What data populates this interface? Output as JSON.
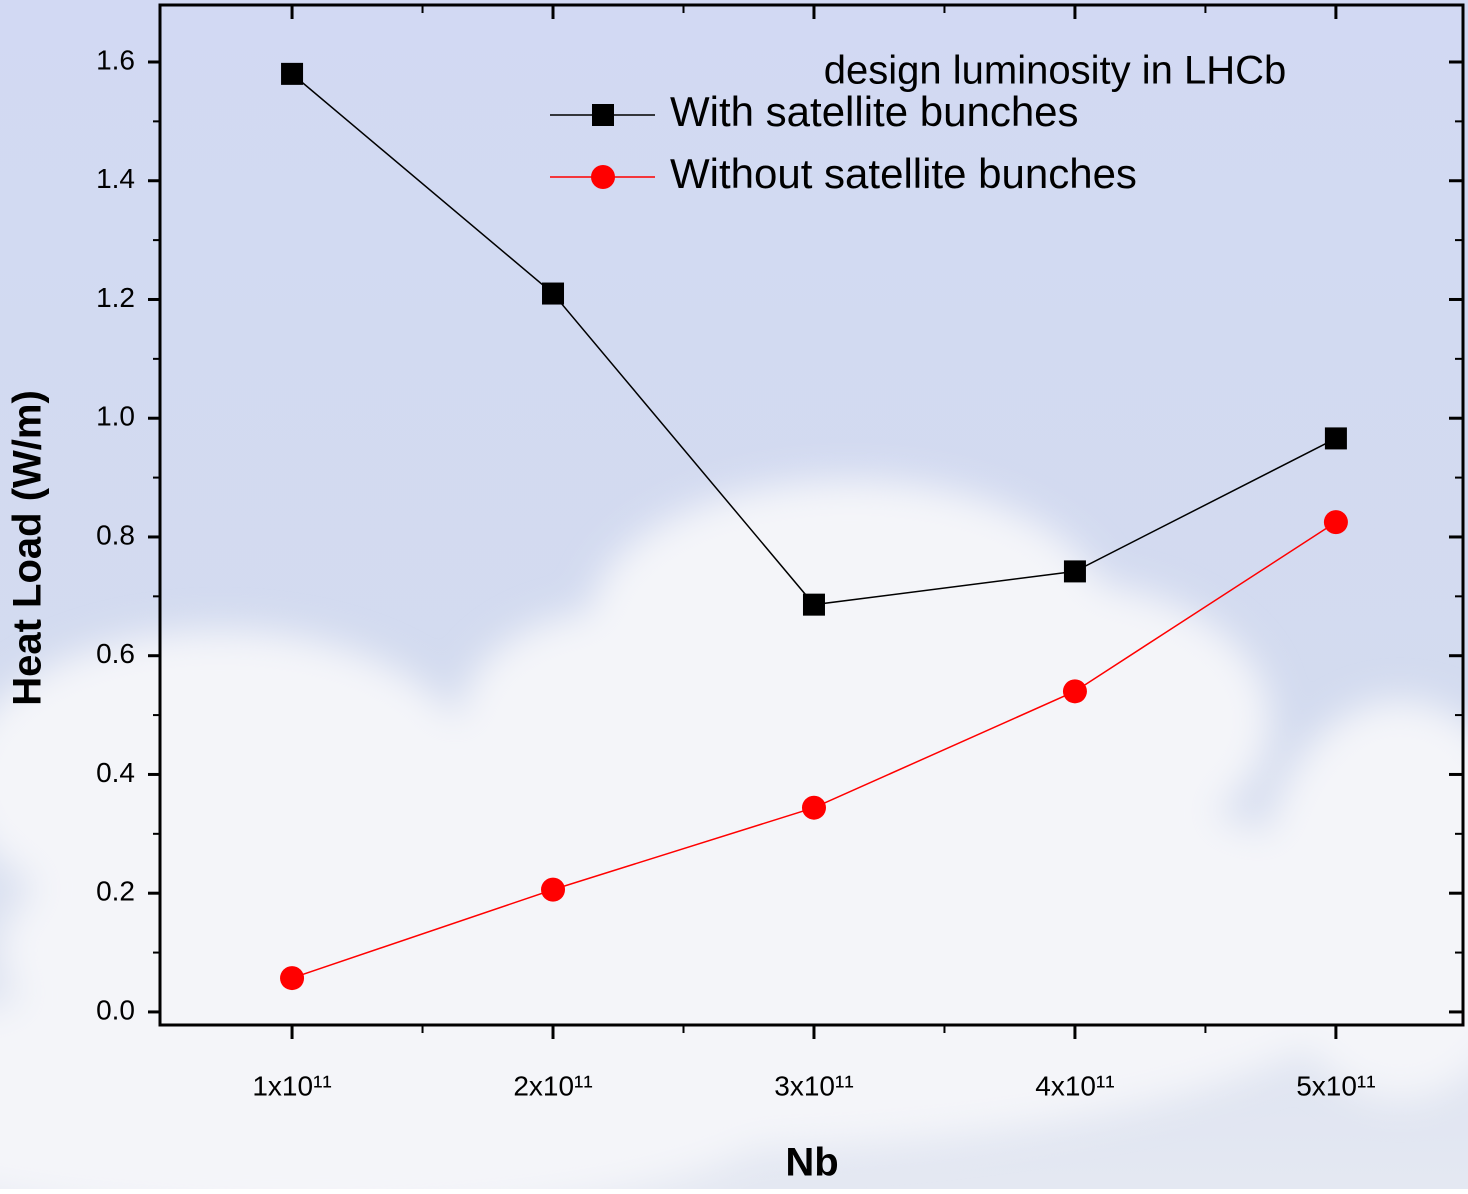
{
  "chart_data": {
    "type": "line",
    "annotation": "design luminosity in LHCb",
    "x_label": "Nb",
    "y_label": "Heat Load (W/m)",
    "x": [
      100000000000,
      200000000000,
      300000000000,
      400000000000,
      500000000000
    ],
    "series": [
      {
        "name": "With satellite bunches",
        "color": "#000000",
        "marker": "square",
        "values": [
          1.58,
          1.21,
          0.686,
          0.742,
          0.966
        ]
      },
      {
        "name": "Without satellite bunches",
        "color": "#ff0000",
        "marker": "circle",
        "values": [
          0.057,
          0.206,
          0.344,
          0.54,
          0.825
        ]
      }
    ],
    "xlim": [
      49400000000,
      548700000000
    ],
    "xticks": [
      {
        "value": 100000000000,
        "label": "1x10¹¹"
      },
      {
        "value": 200000000000,
        "label": "2x10¹¹"
      },
      {
        "value": 300000000000,
        "label": "3x10¹¹"
      },
      {
        "value": 400000000000,
        "label": "4x10¹¹"
      },
      {
        "value": 500000000000,
        "label": "5x10¹¹"
      }
    ],
    "ylim": [
      -0.022,
      1.696
    ],
    "yticks": [
      {
        "value": 0,
        "label": "0.0"
      },
      0.2,
      0.4,
      0.6,
      0.8,
      {
        "value": 1,
        "label": "1.0"
      },
      1.2,
      1.4,
      1.6
    ],
    "legend": "upper right"
  }
}
